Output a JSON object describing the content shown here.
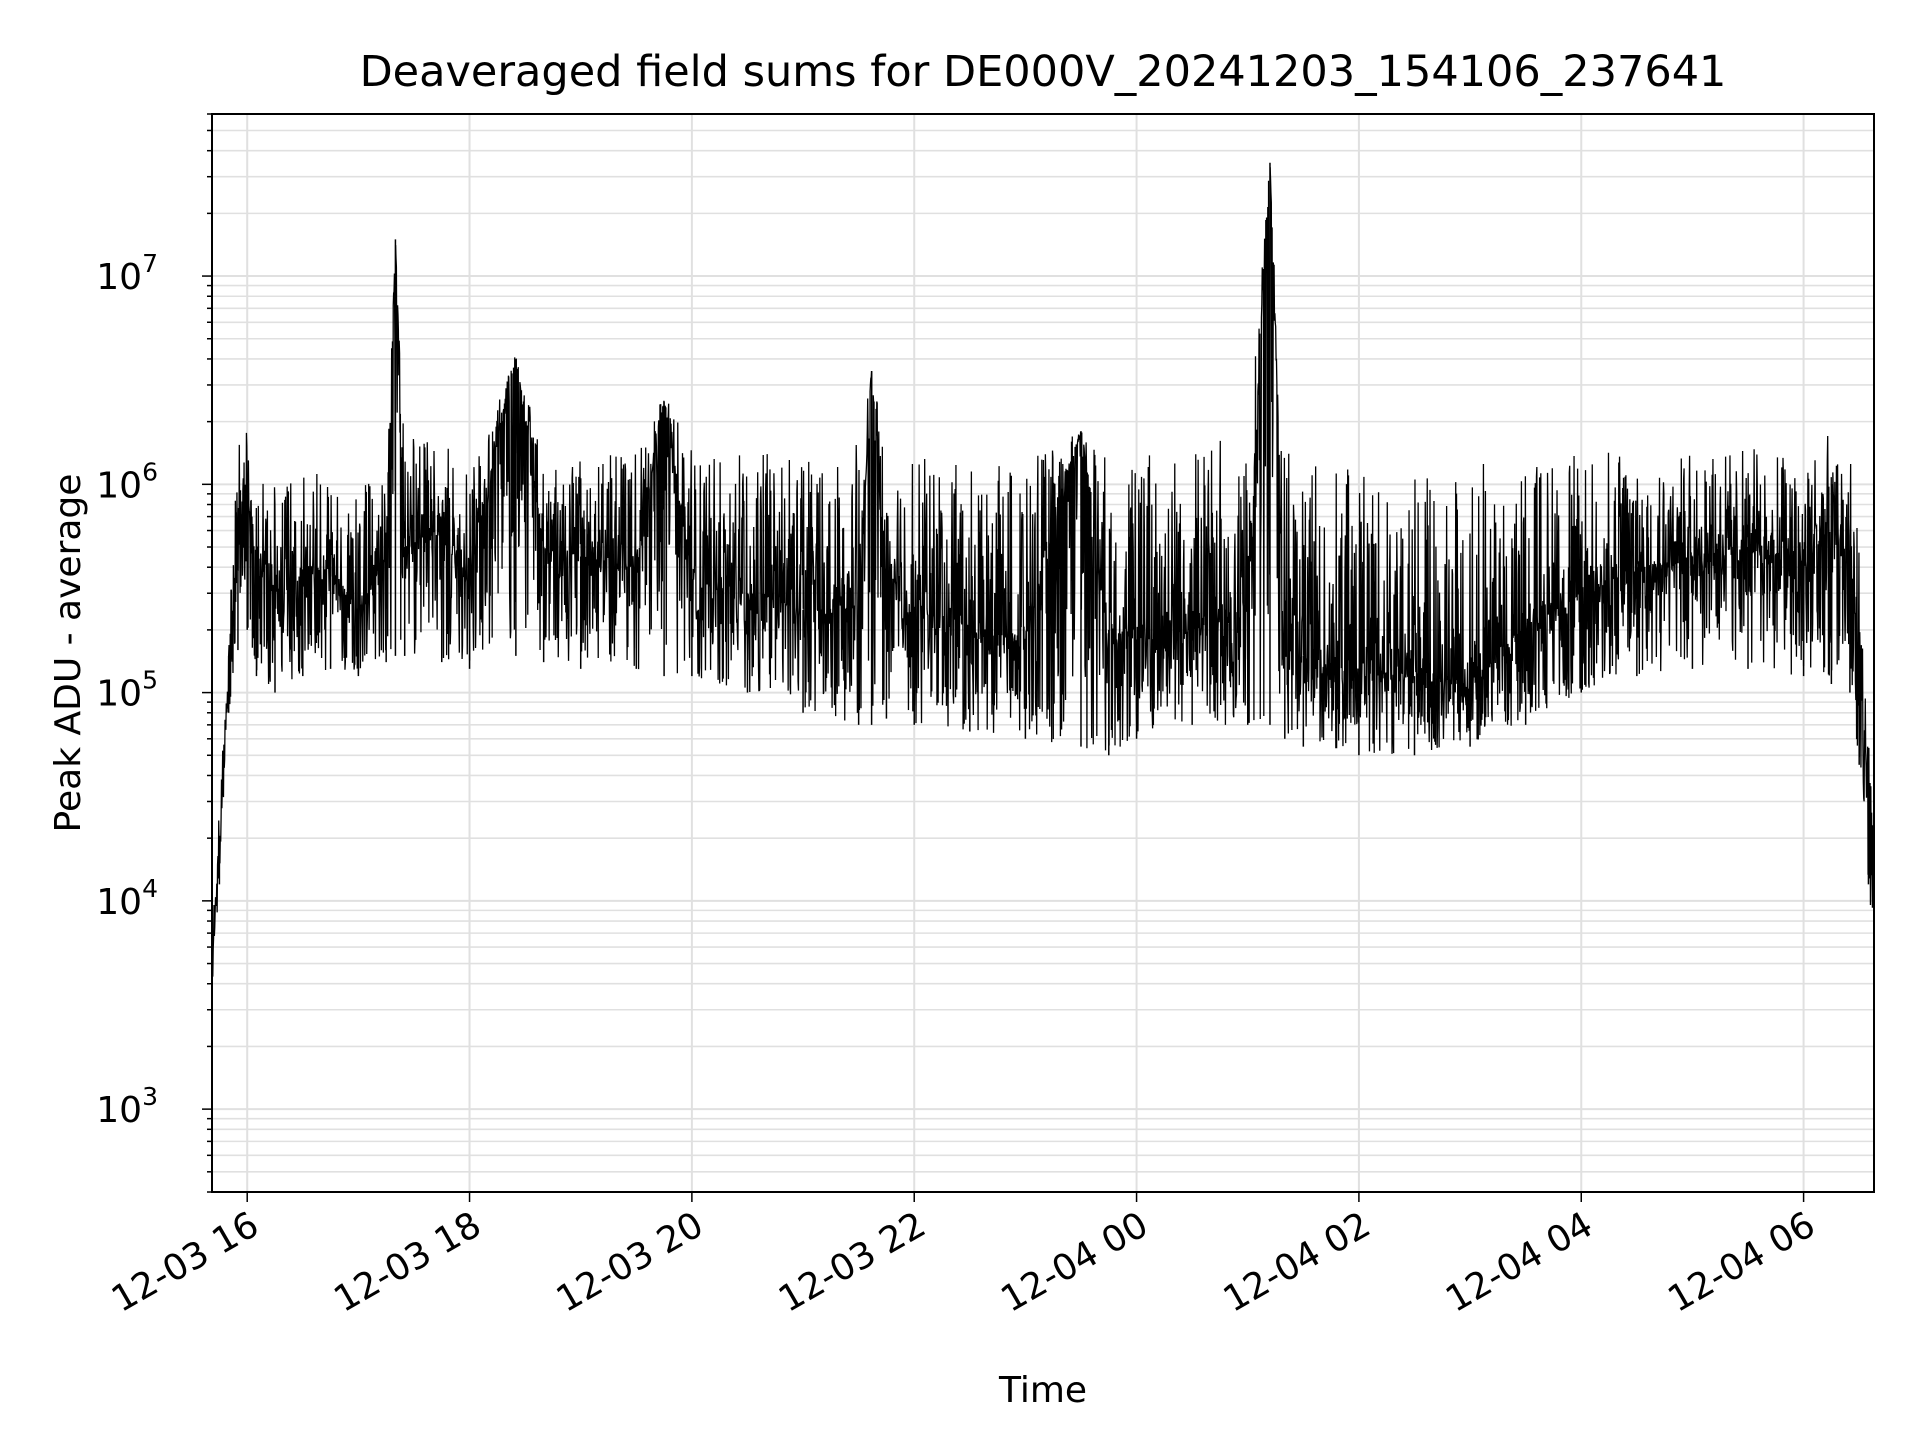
{
  "chart_data": {
    "type": "line",
    "title": "Deaveraged field sums for DE000V_20241203_154106_237641",
    "xlabel": "Time",
    "ylabel": "Peak ADU - average",
    "yscale": "log",
    "ylim": [
      400,
      60000000
    ],
    "xlim": [
      "12-03 15:41",
      "12-04 06:38"
    ],
    "grid": true,
    "line_color": "#000000",
    "grid_color": "#e0e0e0",
    "x_ticks": [
      {
        "label": "12-03 16",
        "time": "12-03 16:00"
      },
      {
        "label": "12-03 18",
        "time": "12-03 18:00"
      },
      {
        "label": "12-03 20",
        "time": "12-03 20:00"
      },
      {
        "label": "12-03 22",
        "time": "12-03 22:00"
      },
      {
        "label": "12-04 00",
        "time": "12-04 00:00"
      },
      {
        "label": "12-04 02",
        "time": "12-04 02:00"
      },
      {
        "label": "12-04 04",
        "time": "12-04 04:00"
      },
      {
        "label": "12-04 06",
        "time": "12-04 06:00"
      }
    ],
    "y_ticks": [
      {
        "base": "10",
        "exp": "3",
        "value": 1000
      },
      {
        "base": "10",
        "exp": "4",
        "value": 10000
      },
      {
        "base": "10",
        "exp": "5",
        "value": 100000
      },
      {
        "base": "10",
        "exp": "6",
        "value": 1000000
      },
      {
        "base": "10",
        "exp": "7",
        "value": 10000000
      }
    ],
    "series": [
      {
        "x": [
          "12-03 15:41",
          "12-03 15:45",
          "12-03 15:50",
          "12-03 15:55",
          "12-03 16:00",
          "12-03 16:05",
          "12-03 16:15",
          "12-03 16:30",
          "12-03 16:45",
          "12-03 17:00",
          "12-03 17:15",
          "12-03 17:20",
          "12-03 17:25",
          "12-03 17:45",
          "12-03 18:00",
          "12-03 18:25",
          "12-03 18:40",
          "12-03 19:00",
          "12-03 19:30",
          "12-03 19:45",
          "12-03 20:00",
          "12-03 20:30",
          "12-03 21:00",
          "12-03 21:30",
          "12-03 21:37",
          "12-03 21:45",
          "12-03 22:00",
          "12-03 22:30",
          "12-03 23:00",
          "12-03 23:30",
          "12-03 23:45",
          "12-04 00:00",
          "12-04 00:30",
          "12-04 01:00",
          "12-04 01:12",
          "12-04 01:20",
          "12-04 01:30",
          "12-04 02:00",
          "12-04 02:30",
          "12-04 03:00",
          "12-04 03:30",
          "12-04 04:00",
          "12-04 04:30",
          "12-04 05:00",
          "12-04 05:30",
          "12-04 06:00",
          "12-04 06:15",
          "12-04 06:25",
          "12-04 06:30",
          "12-04 06:35",
          "12-04 06:38"
        ],
        "y": [
          5000,
          20000,
          150000,
          600000,
          900000,
          400000,
          300000,
          350000,
          400000,
          250000,
          450000,
          15000000,
          500000,
          600000,
          400000,
          4000000,
          500000,
          450000,
          400000,
          2500000,
          350000,
          300000,
          250000,
          250000,
          3500000,
          300000,
          250000,
          200000,
          180000,
          1800000,
          200000,
          180000,
          200000,
          250000,
          35000000,
          200000,
          150000,
          130000,
          120000,
          110000,
          200000,
          300000,
          400000,
          450000,
          500000,
          400000,
          600000,
          400000,
          150000,
          30000,
          10000
        ],
        "envelope_low": [
          3000,
          12000,
          80000,
          160000,
          200000,
          120000,
          100000,
          120000,
          130000,
          120000,
          140000,
          150000,
          150000,
          140000,
          130000,
          150000,
          140000,
          130000,
          130000,
          120000,
          120000,
          100000,
          80000,
          70000,
          70000,
          75000,
          70000,
          65000,
          60000,
          55000,
          50000,
          60000,
          70000,
          70000,
          70000,
          60000,
          55000,
          50000,
          50000,
          55000,
          70000,
          100000,
          120000,
          130000,
          130000,
          120000,
          110000,
          100000,
          45000,
          12000,
          5500
        ],
        "envelope_high": [
          8000,
          30000,
          200000,
          1500000,
          2000000,
          1200000,
          1000000,
          1100000,
          1200000,
          1000000,
          1100000,
          15000000,
          1800000,
          1600000,
          1200000,
          4200000,
          1400000,
          1300000,
          1500000,
          2700000,
          1500000,
          1400000,
          1600000,
          1600000,
          3500000,
          1400000,
          1400000,
          1200000,
          1300000,
          1800000,
          1400000,
          1500000,
          1700000,
          1600000,
          35000000,
          1500000,
          1200000,
          1300000,
          1200000,
          1300000,
          1300000,
          1400000,
          1500000,
          1400000,
          1500000,
          1500000,
          1800000,
          1400000,
          500000,
          60000,
          20000
        ]
      }
    ]
  }
}
